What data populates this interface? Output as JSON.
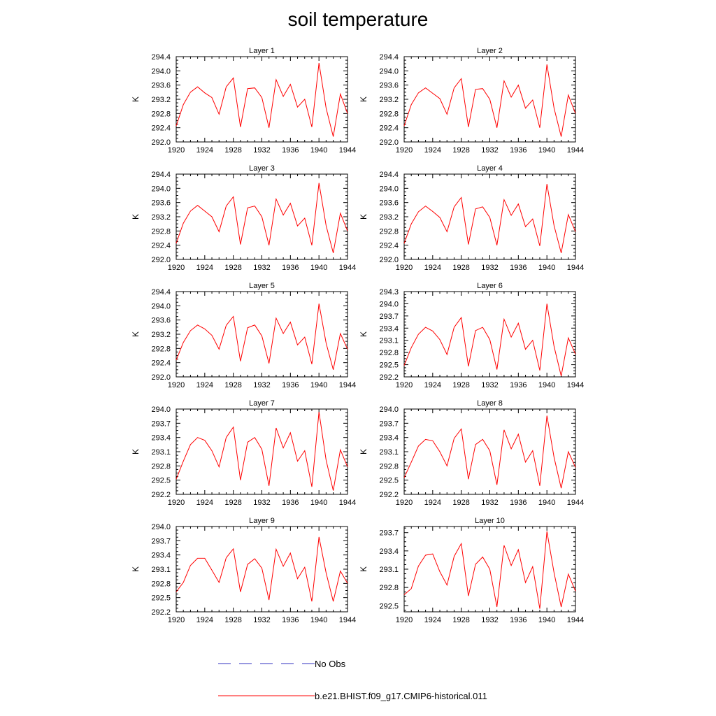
{
  "figure": {
    "title": "soil temperature",
    "legend": [
      {
        "label": "No Obs",
        "color": "#0000cc",
        "style": "dashed"
      },
      {
        "label": "b.e21.BHIST.f09_g17.CMIP6-historical.011",
        "color": "#ff0000",
        "style": "solid"
      }
    ]
  },
  "chart_data": [
    {
      "type": "line",
      "title": "Layer 1",
      "ylabel": "K",
      "xlim": [
        1920,
        1944
      ],
      "ylim": [
        292.0,
        294.4
      ],
      "yticks": [
        "292.0",
        "292.4",
        "292.8",
        "293.2",
        "293.6",
        "294.0",
        "294.4"
      ],
      "xticks": [
        "1920",
        "1924",
        "1928",
        "1932",
        "1936",
        "1940",
        "1944"
      ],
      "x": [
        1920,
        1921,
        1922,
        1923,
        1924,
        1925,
        1926,
        1927,
        1928,
        1929,
        1930,
        1931,
        1932,
        1933,
        1934,
        1935,
        1936,
        1937,
        1938,
        1939,
        1940,
        1941,
        1942,
        1943,
        1944
      ],
      "series": [
        {
          "color": "#ff0000",
          "values": [
            292.45,
            293.05,
            293.4,
            293.55,
            293.38,
            293.25,
            292.78,
            293.55,
            293.8,
            292.42,
            293.5,
            293.52,
            293.25,
            292.4,
            293.75,
            293.28,
            293.62,
            292.98,
            293.2,
            292.42,
            294.22,
            292.95,
            292.15,
            293.35,
            292.8
          ]
        }
      ]
    },
    {
      "type": "line",
      "title": "Layer 2",
      "ylabel": "K",
      "xlim": [
        1920,
        1944
      ],
      "ylim": [
        292.0,
        294.4
      ],
      "yticks": [
        "292.0",
        "292.4",
        "292.8",
        "293.2",
        "293.6",
        "294.0",
        "294.4"
      ],
      "xticks": [
        "1920",
        "1924",
        "1928",
        "1932",
        "1936",
        "1940",
        "1944"
      ],
      "x": [
        1920,
        1921,
        1922,
        1923,
        1924,
        1925,
        1926,
        1927,
        1928,
        1929,
        1930,
        1931,
        1932,
        1933,
        1934,
        1935,
        1936,
        1937,
        1938,
        1939,
        1940,
        1941,
        1942,
        1943,
        1944
      ],
      "series": [
        {
          "color": "#ff0000",
          "values": [
            292.45,
            293.05,
            293.38,
            293.52,
            293.37,
            293.22,
            292.78,
            293.52,
            293.78,
            292.42,
            293.48,
            293.5,
            293.2,
            292.4,
            293.72,
            293.26,
            293.6,
            292.95,
            293.18,
            292.4,
            294.18,
            292.95,
            292.15,
            293.32,
            292.8
          ]
        }
      ]
    },
    {
      "type": "line",
      "title": "Layer 3",
      "ylabel": "K",
      "xlim": [
        1920,
        1944
      ],
      "ylim": [
        292.0,
        294.4
      ],
      "yticks": [
        "292.0",
        "292.4",
        "292.8",
        "293.2",
        "293.6",
        "294.0",
        "294.4"
      ],
      "xticks": [
        "1920",
        "1924",
        "1928",
        "1932",
        "1936",
        "1940",
        "1944"
      ],
      "x": [
        1920,
        1921,
        1922,
        1923,
        1924,
        1925,
        1926,
        1927,
        1928,
        1929,
        1930,
        1931,
        1932,
        1933,
        1934,
        1935,
        1936,
        1937,
        1938,
        1939,
        1940,
        1941,
        1942,
        1943,
        1944
      ],
      "series": [
        {
          "color": "#ff0000",
          "values": [
            292.45,
            293.02,
            293.36,
            293.52,
            293.36,
            293.2,
            292.78,
            293.5,
            293.76,
            292.42,
            293.45,
            293.5,
            293.2,
            292.4,
            293.7,
            293.25,
            293.58,
            292.94,
            293.16,
            292.4,
            294.15,
            292.95,
            292.18,
            293.3,
            292.8
          ]
        }
      ]
    },
    {
      "type": "line",
      "title": "Layer 4",
      "ylabel": "K",
      "xlim": [
        1920,
        1944
      ],
      "ylim": [
        292.0,
        294.4
      ],
      "yticks": [
        "292.0",
        "292.4",
        "292.8",
        "293.2",
        "293.6",
        "294.0",
        "294.4"
      ],
      "xticks": [
        "1920",
        "1924",
        "1928",
        "1932",
        "1936",
        "1940",
        "1944"
      ],
      "x": [
        1920,
        1921,
        1922,
        1923,
        1924,
        1925,
        1926,
        1927,
        1928,
        1929,
        1930,
        1931,
        1932,
        1933,
        1934,
        1935,
        1936,
        1937,
        1938,
        1939,
        1940,
        1941,
        1942,
        1943,
        1944
      ],
      "series": [
        {
          "color": "#ff0000",
          "values": [
            292.45,
            293.0,
            293.34,
            293.5,
            293.35,
            293.18,
            292.78,
            293.48,
            293.74,
            292.42,
            293.42,
            293.48,
            293.18,
            292.4,
            293.68,
            293.24,
            293.56,
            292.92,
            293.14,
            292.38,
            294.12,
            292.95,
            292.18,
            293.26,
            292.78
          ]
        }
      ]
    },
    {
      "type": "line",
      "title": "Layer 5",
      "ylabel": "K",
      "xlim": [
        1920,
        1944
      ],
      "ylim": [
        292.0,
        294.4
      ],
      "yticks": [
        "292.0",
        "292.4",
        "292.8",
        "293.2",
        "293.6",
        "294.0",
        "294.4"
      ],
      "xticks": [
        "1920",
        "1924",
        "1928",
        "1932",
        "1936",
        "1940",
        "1944"
      ],
      "x": [
        1920,
        1921,
        1922,
        1923,
        1924,
        1925,
        1926,
        1927,
        1928,
        1929,
        1930,
        1931,
        1932,
        1933,
        1934,
        1935,
        1936,
        1937,
        1938,
        1939,
        1940,
        1941,
        1942,
        1943,
        1944
      ],
      "series": [
        {
          "color": "#ff0000",
          "values": [
            292.47,
            292.97,
            293.3,
            293.46,
            293.35,
            293.17,
            292.78,
            293.45,
            293.7,
            292.44,
            293.38,
            293.46,
            293.15,
            292.38,
            293.65,
            293.22,
            293.54,
            292.9,
            293.12,
            292.36,
            294.06,
            292.95,
            292.2,
            293.22,
            292.78
          ]
        }
      ]
    },
    {
      "type": "line",
      "title": "Layer 6",
      "ylabel": "K",
      "xlim": [
        1920,
        1944
      ],
      "ylim": [
        292.2,
        294.3
      ],
      "yticks": [
        "292.2",
        "292.5",
        "292.8",
        "293.1",
        "293.4",
        "293.7",
        "294.0",
        "294.3"
      ],
      "xticks": [
        "1920",
        "1924",
        "1928",
        "1932",
        "1936",
        "1940",
        "1944"
      ],
      "x": [
        1920,
        1921,
        1922,
        1923,
        1924,
        1925,
        1926,
        1927,
        1928,
        1929,
        1930,
        1931,
        1932,
        1933,
        1934,
        1935,
        1936,
        1937,
        1938,
        1939,
        1940,
        1941,
        1942,
        1943,
        1944
      ],
      "series": [
        {
          "color": "#ff0000",
          "values": [
            292.48,
            292.92,
            293.25,
            293.42,
            293.33,
            293.12,
            292.75,
            293.42,
            293.66,
            292.46,
            293.34,
            293.42,
            293.12,
            292.38,
            293.62,
            293.18,
            293.52,
            292.88,
            293.1,
            292.36,
            294.0,
            292.95,
            292.22,
            293.16,
            292.76
          ]
        }
      ]
    },
    {
      "type": "line",
      "title": "Layer 7",
      "ylabel": "K",
      "xlim": [
        1920,
        1944
      ],
      "ylim": [
        292.2,
        294.0
      ],
      "yticks": [
        "292.2",
        "292.5",
        "292.8",
        "293.1",
        "293.4",
        "293.7",
        "294.0"
      ],
      "xticks": [
        "1920",
        "1924",
        "1928",
        "1932",
        "1936",
        "1940",
        "1944"
      ],
      "x": [
        1920,
        1921,
        1922,
        1923,
        1924,
        1925,
        1926,
        1927,
        1928,
        1929,
        1930,
        1931,
        1932,
        1933,
        1934,
        1935,
        1936,
        1937,
        1938,
        1939,
        1940,
        1941,
        1942,
        1943,
        1944
      ],
      "series": [
        {
          "color": "#ff0000",
          "values": [
            292.52,
            292.9,
            293.25,
            293.4,
            293.34,
            293.12,
            292.78,
            293.4,
            293.62,
            292.5,
            293.3,
            293.4,
            293.15,
            292.38,
            293.6,
            293.18,
            293.5,
            292.9,
            293.12,
            292.36,
            293.94,
            292.92,
            292.28,
            293.14,
            292.78
          ]
        }
      ]
    },
    {
      "type": "line",
      "title": "Layer 8",
      "ylabel": "K",
      "xlim": [
        1920,
        1944
      ],
      "ylim": [
        292.2,
        294.0
      ],
      "yticks": [
        "292.2",
        "292.5",
        "292.8",
        "293.1",
        "293.4",
        "293.7",
        "294.0"
      ],
      "xticks": [
        "1920",
        "1924",
        "1928",
        "1932",
        "1936",
        "1940",
        "1944"
      ],
      "x": [
        1920,
        1921,
        1922,
        1923,
        1924,
        1925,
        1926,
        1927,
        1928,
        1929,
        1930,
        1931,
        1932,
        1933,
        1934,
        1935,
        1936,
        1937,
        1938,
        1939,
        1940,
        1941,
        1942,
        1943,
        1944
      ],
      "series": [
        {
          "color": "#ff0000",
          "values": [
            292.55,
            292.88,
            293.22,
            293.36,
            293.33,
            293.1,
            292.8,
            293.38,
            293.58,
            292.52,
            293.25,
            293.36,
            293.12,
            292.4,
            293.56,
            293.16,
            293.47,
            292.88,
            293.12,
            292.38,
            293.86,
            292.98,
            292.33,
            293.1,
            292.77
          ]
        }
      ]
    },
    {
      "type": "line",
      "title": "Layer 9",
      "ylabel": "K",
      "xlim": [
        1920,
        1944
      ],
      "ylim": [
        292.2,
        294.0
      ],
      "yticks": [
        "292.2",
        "292.5",
        "292.8",
        "293.1",
        "293.4",
        "293.7",
        "294.0"
      ],
      "xticks": [
        "1920",
        "1924",
        "1928",
        "1932",
        "1936",
        "1940",
        "1944"
      ],
      "x": [
        1920,
        1921,
        1922,
        1923,
        1924,
        1925,
        1926,
        1927,
        1928,
        1929,
        1930,
        1931,
        1932,
        1933,
        1934,
        1935,
        1936,
        1937,
        1938,
        1939,
        1940,
        1941,
        1942,
        1943,
        1944
      ],
      "series": [
        {
          "color": "#ff0000",
          "values": [
            292.62,
            292.82,
            293.18,
            293.33,
            293.33,
            293.08,
            292.82,
            293.34,
            293.53,
            292.62,
            293.2,
            293.32,
            293.12,
            292.45,
            293.52,
            293.16,
            293.44,
            292.9,
            293.14,
            292.42,
            293.78,
            293.02,
            292.42,
            293.06,
            292.8
          ]
        }
      ]
    },
    {
      "type": "line",
      "title": "Layer 10",
      "ylabel": "K",
      "xlim": [
        1920,
        1944
      ],
      "ylim": [
        292.4,
        293.8
      ],
      "yticks": [
        "292.5",
        "292.8",
        "293.1",
        "293.4",
        "293.7"
      ],
      "xticks": [
        "1920",
        "1924",
        "1928",
        "1932",
        "1936",
        "1940",
        "1944"
      ],
      "x": [
        1920,
        1921,
        1922,
        1923,
        1924,
        1925,
        1926,
        1927,
        1928,
        1929,
        1930,
        1931,
        1932,
        1933,
        1934,
        1935,
        1936,
        1937,
        1938,
        1939,
        1940,
        1941,
        1942,
        1943,
        1944
      ],
      "series": [
        {
          "color": "#ff0000",
          "values": [
            292.68,
            292.78,
            293.15,
            293.33,
            293.35,
            293.06,
            292.84,
            293.31,
            293.52,
            292.66,
            293.18,
            293.3,
            293.1,
            292.48,
            293.49,
            293.16,
            293.42,
            292.88,
            293.14,
            292.45,
            293.72,
            293.04,
            292.48,
            293.02,
            292.74
          ]
        }
      ]
    }
  ]
}
